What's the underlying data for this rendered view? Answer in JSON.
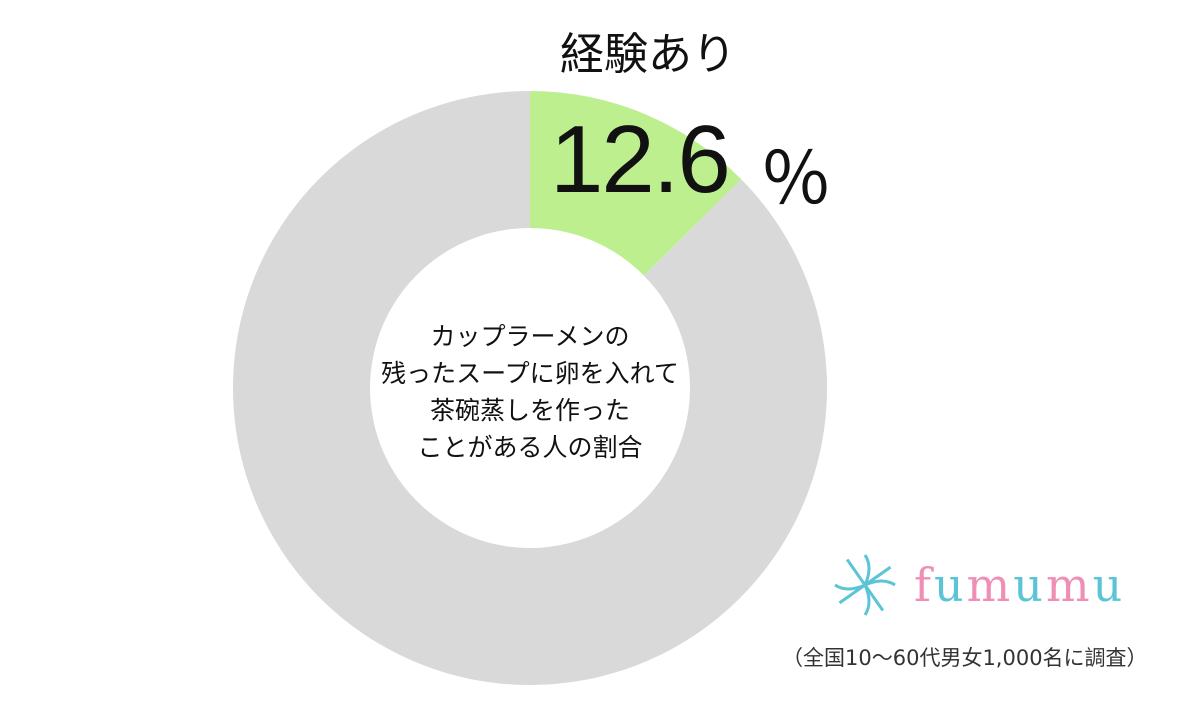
{
  "chart_data": {
    "type": "pie",
    "donut": true,
    "slices": [
      {
        "name": "経験あり",
        "value": 12.6,
        "color": "#bdef8f"
      },
      {
        "name": "",
        "value": 87.4,
        "color": "#d9d9d9"
      }
    ],
    "highlight_label": "経験あり",
    "highlight_value": "12.6",
    "unit": "％",
    "center_text": [
      "カップラーメンの",
      "残ったスープに卵を入れて",
      "茶碗蒸しを作った",
      "ことがある人の割合"
    ]
  },
  "logo": {
    "letters": [
      "f",
      "u",
      "m",
      "u",
      "m",
      "u"
    ],
    "colors": [
      "#ef8fb8",
      "#5bc4d6"
    ]
  },
  "note": "（全国10〜60代男女1,000名に調査）"
}
